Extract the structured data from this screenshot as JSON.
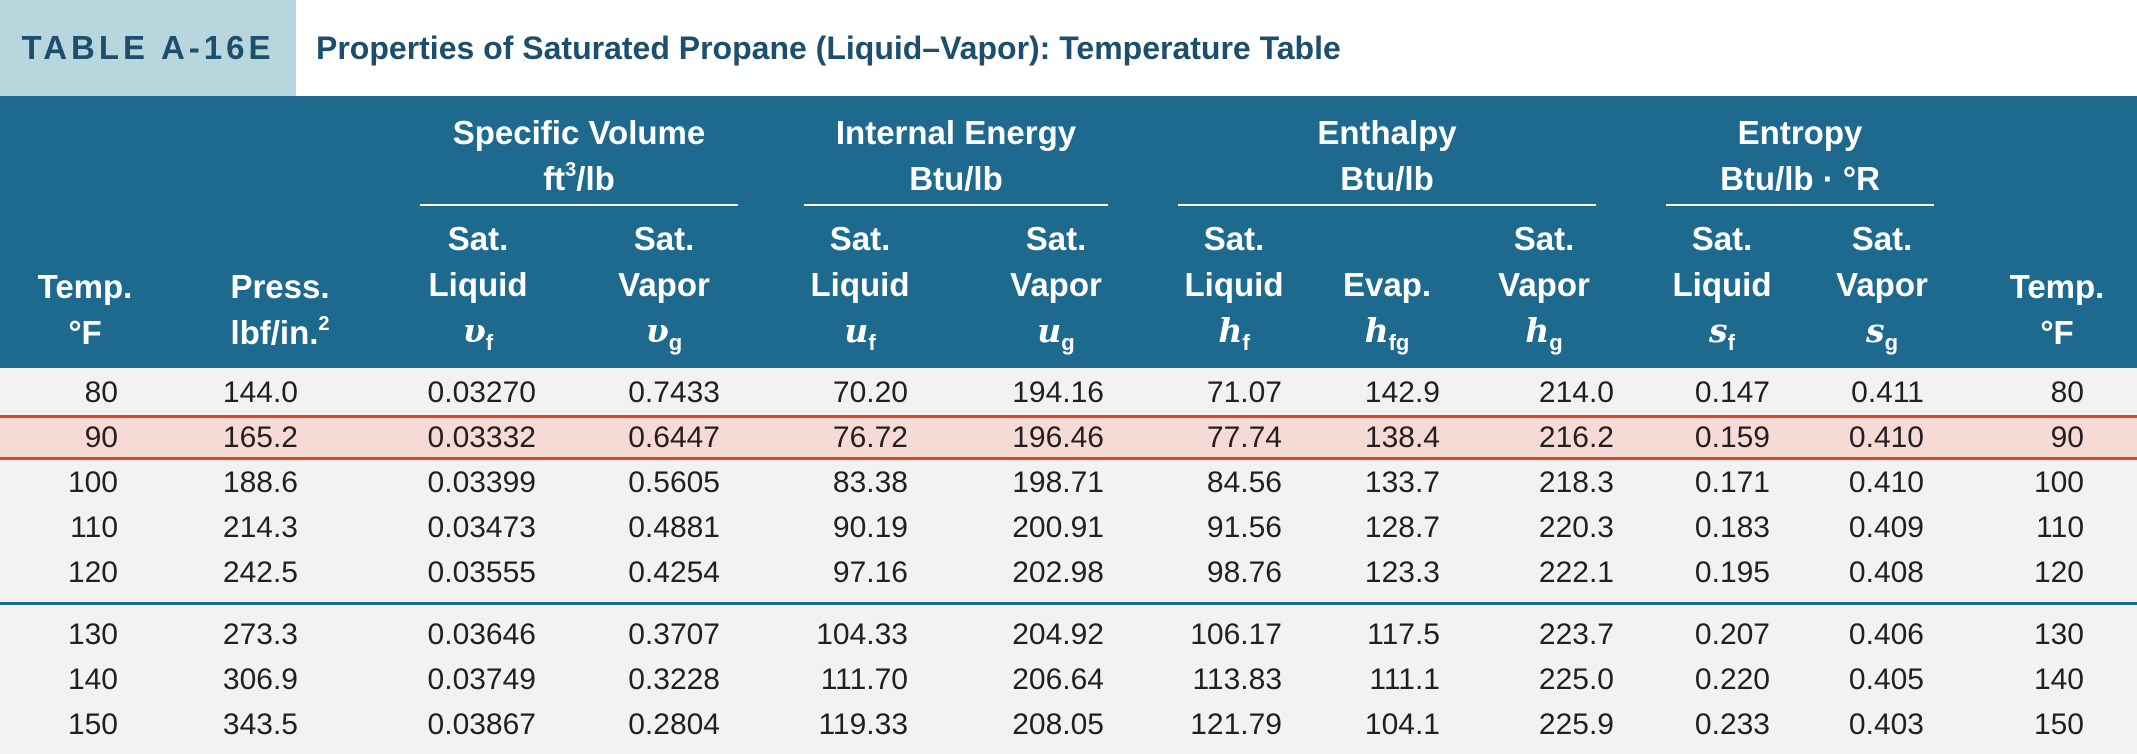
{
  "table": {
    "tag": "TABLE A-16E",
    "title": "Properties of Saturated Propane (Liquid–Vapor): Temperature Table"
  },
  "header": {
    "temp": {
      "line1": "Temp.",
      "line2": "°F"
    },
    "press": {
      "line1": "Press.",
      "line2": "lbf/in.",
      "exp": "2"
    },
    "groups": {
      "specific_volume": {
        "name": "Specific Volume",
        "unit": "ft",
        "unit_exp": "3",
        "unit_rest": "/lb"
      },
      "internal_energy": {
        "name": "Internal Energy",
        "unit": "Btu/lb"
      },
      "enthalpy": {
        "name": "Enthalpy",
        "unit": "Btu/lb"
      },
      "entropy": {
        "name": "Entropy",
        "unit": "Btu/lb · °R"
      }
    },
    "sub": {
      "sat": "Sat.",
      "liquid": "Liquid",
      "vapor": "Vapor",
      "evap": "Evap."
    },
    "symbols": {
      "vf": "υ",
      "vf_sub": "f",
      "vg": "υ",
      "vg_sub": "g",
      "uf": "u",
      "uf_sub": "f",
      "ug": "u",
      "ug_sub": "g",
      "hf": "h",
      "hf_sub": "f",
      "hfg": "h",
      "hfg_sub": "fg",
      "hg": "h",
      "hg_sub": "g",
      "sf": "s",
      "sf_sub": "f",
      "sg": "s",
      "sg_sub": "g"
    }
  },
  "rows": [
    [
      "80",
      "144.0",
      "0.03270",
      "0.7433",
      "70.20",
      "194.16",
      "71.07",
      "142.9",
      "214.0",
      "0.147",
      "0.411",
      "80"
    ],
    [
      "90",
      "165.2",
      "0.03332",
      "0.6447",
      "76.72",
      "196.46",
      "77.74",
      "138.4",
      "216.2",
      "0.159",
      "0.410",
      "90"
    ],
    [
      "100",
      "188.6",
      "0.03399",
      "0.5605",
      "83.38",
      "198.71",
      "84.56",
      "133.7",
      "218.3",
      "0.171",
      "0.410",
      "100"
    ],
    [
      "110",
      "214.3",
      "0.03473",
      "0.4881",
      "90.19",
      "200.91",
      "91.56",
      "128.7",
      "220.3",
      "0.183",
      "0.409",
      "110"
    ],
    [
      "120",
      "242.5",
      "0.03555",
      "0.4254",
      "97.16",
      "202.98",
      "98.76",
      "123.3",
      "222.1",
      "0.195",
      "0.408",
      "120"
    ],
    [
      "130",
      "273.3",
      "0.03646",
      "0.3707",
      "104.33",
      "204.92",
      "106.17",
      "117.5",
      "223.7",
      "0.207",
      "0.406",
      "130"
    ],
    [
      "140",
      "306.9",
      "0.03749",
      "0.3228",
      "111.70",
      "206.64",
      "113.83",
      "111.1",
      "225.0",
      "0.220",
      "0.405",
      "140"
    ],
    [
      "150",
      "343.5",
      "0.03867",
      "0.2804",
      "119.33",
      "208.05",
      "121.79",
      "104.1",
      "225.9",
      "0.233",
      "0.403",
      "150"
    ]
  ],
  "highlighted_row": 1,
  "colors": {
    "header_bg": "#1e6a8e",
    "tag_bg": "#b8d6de",
    "highlight_bg": "#f6dad6",
    "highlight_line": "#e2452b",
    "body_bg": "#f2f2f2"
  }
}
